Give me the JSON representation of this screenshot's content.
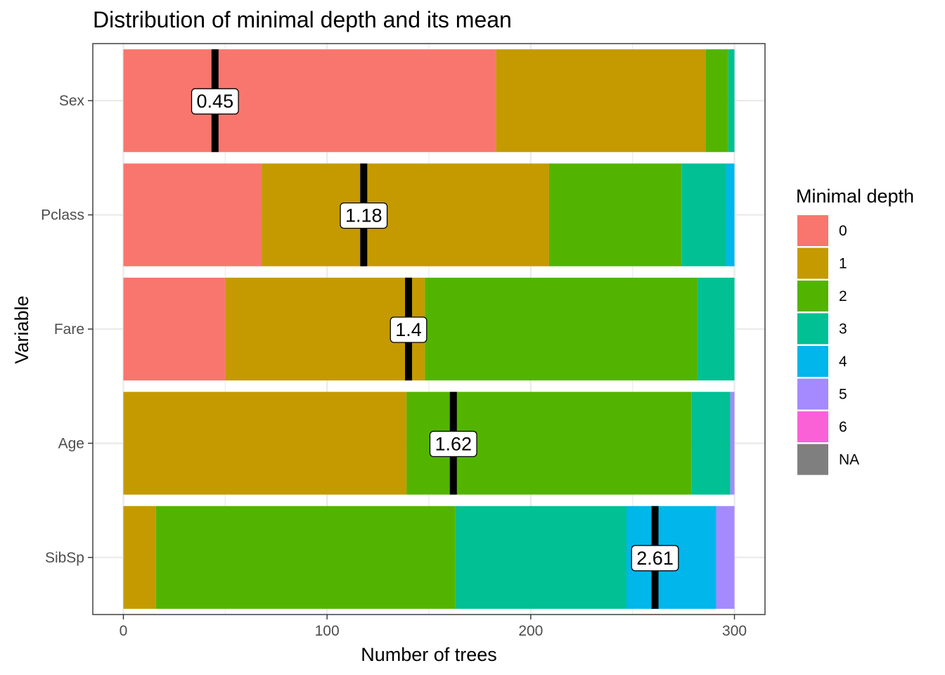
{
  "chart_data": {
    "type": "bar",
    "orientation": "horizontal",
    "stacked": true,
    "title": "Distribution of minimal depth and its mean",
    "xlabel": "Number of trees",
    "ylabel": "Variable",
    "xlim": [
      -15,
      315
    ],
    "xticks": [
      0,
      100,
      200,
      300
    ],
    "grid": true,
    "legend_position": "right",
    "categories": [
      "Sex",
      "Pclass",
      "Fare",
      "Age",
      "SibSp"
    ],
    "legend": {
      "title": "Minimal depth",
      "entries": [
        "0",
        "1",
        "2",
        "3",
        "4",
        "5",
        "6",
        "NA"
      ],
      "colors": [
        "#F8766D",
        "#C49A00",
        "#53B400",
        "#00C094",
        "#00B6EB",
        "#A58AFF",
        "#FB61D7",
        "#7F7F7F"
      ]
    },
    "series": [
      {
        "name": "0",
        "values": [
          183,
          68,
          50,
          0,
          0
        ]
      },
      {
        "name": "1",
        "values": [
          103,
          141,
          98,
          139,
          16
        ]
      },
      {
        "name": "2",
        "values": [
          11,
          65,
          134,
          140,
          147
        ]
      },
      {
        "name": "3",
        "values": [
          3,
          22,
          18,
          19,
          84
        ]
      },
      {
        "name": "4",
        "values": [
          0,
          4,
          0,
          0,
          44
        ]
      },
      {
        "name": "5",
        "values": [
          0,
          0,
          0,
          2,
          9
        ]
      },
      {
        "name": "6",
        "values": [
          0,
          0,
          0,
          0,
          0
        ]
      },
      {
        "name": "NA",
        "values": [
          0,
          0,
          0,
          0,
          0
        ]
      }
    ],
    "mean_markers": [
      {
        "variable": "Sex",
        "label": "0.45"
      },
      {
        "variable": "Pclass",
        "label": "1.18"
      },
      {
        "variable": "Fare",
        "label": "1.4"
      },
      {
        "variable": "Age",
        "label": "1.62"
      },
      {
        "variable": "SibSp",
        "label": "2.61"
      }
    ]
  }
}
